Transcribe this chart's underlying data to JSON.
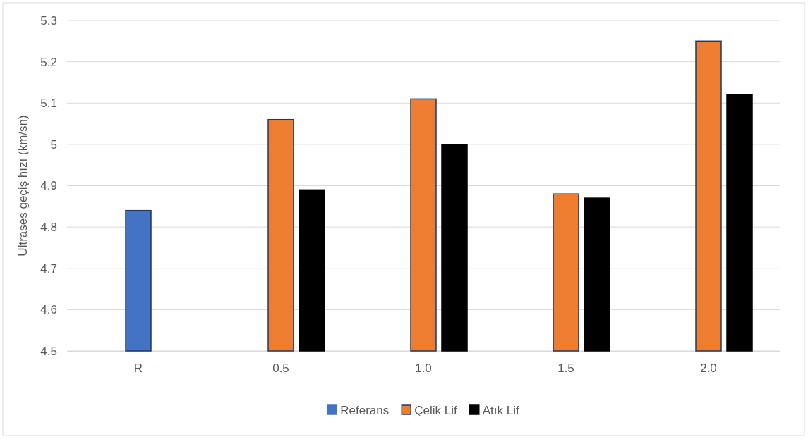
{
  "chart_data": {
    "type": "bar",
    "ylabel": "Ultrases geçiş hızı (km/sn)",
    "categories": [
      "R",
      "0.5",
      "1.0",
      "1.5",
      "2.0"
    ],
    "series": [
      {
        "name": "Referans",
        "color": "#4472c4",
        "values": [
          4.5,
          4.5,
          4.5,
          4.5,
          4.5
        ]
      },
      {
        "name": "Çelik Lif",
        "color": "#ed7d31",
        "colors": [
          "#4472c4",
          "#ed7d31",
          "#ed7d31",
          "#ed7d31",
          "#ed7d31"
        ],
        "values": [
          4.84,
          5.06,
          5.11,
          4.88,
          5.25
        ]
      },
      {
        "name": "Atık Lif",
        "color": "#000000",
        "values": [
          null,
          4.89,
          5.0,
          4.87,
          5.12
        ]
      }
    ],
    "ylim": [
      4.5,
      5.3
    ],
    "yticks": [
      4.5,
      4.6,
      4.7,
      4.8,
      4.9,
      5,
      5.1,
      5.2,
      5.3
    ],
    "grid": "y",
    "legend": "bottom"
  }
}
